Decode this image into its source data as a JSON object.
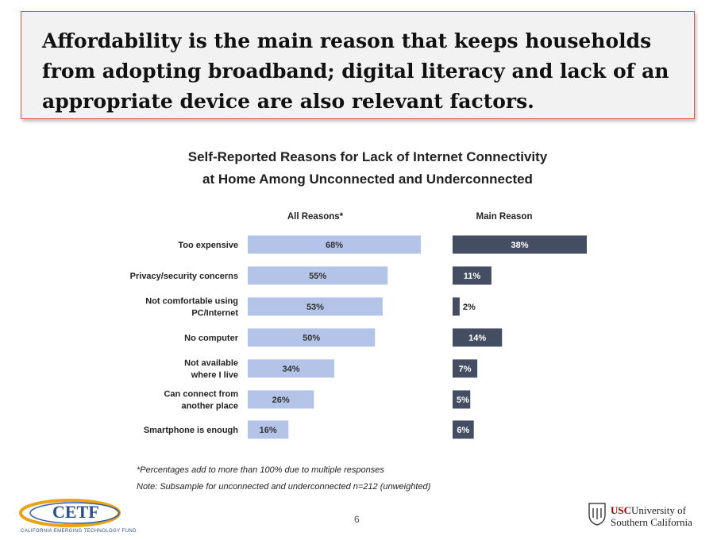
{
  "headline": {
    "lines": [
      "Affordability is the main reason that keeps households",
      "from adopting broadband; digital literacy and lack of an",
      "appropriate device are also relevant factors."
    ]
  },
  "chart_data": {
    "type": "bar",
    "orientation": "horizontal",
    "title": [
      "Self-Reported Reasons for Lack of Internet Connectivity",
      "at Home Among Unconnected and Underconnected"
    ],
    "categories": [
      "Too expensive",
      "Privacy/security concerns",
      "Not comfortable using PC/Internet",
      "No computer",
      "Not available where I live",
      "Can connect from another place",
      "Smartphone is enough"
    ],
    "category_lines": [
      [
        "Too expensive"
      ],
      [
        "Privacy/security concerns"
      ],
      [
        "Not comfortable using",
        "PC/Internet"
      ],
      [
        "No computer"
      ],
      [
        "Not available",
        "where I live"
      ],
      [
        "Can connect from",
        "another place"
      ],
      [
        "Smartphone is enough"
      ]
    ],
    "series": [
      {
        "name": "All Reasons*",
        "values": [
          68,
          55,
          53,
          50,
          34,
          26,
          16
        ],
        "labels": [
          "68%",
          "55%",
          "53%",
          "50%",
          "34%",
          "26%",
          "16%"
        ],
        "color": "#b4c3e8",
        "label_color": "#333333"
      },
      {
        "name": "Main Reason",
        "values": [
          38,
          11,
          2,
          14,
          7,
          5,
          6
        ],
        "labels": [
          "38%",
          "11%",
          "2%",
          "14%",
          "7%",
          "5%",
          "6%"
        ],
        "color": "#434e63",
        "label_color": "#ffffff"
      }
    ],
    "unit": "%"
  },
  "notes": [
    "*Percentages add to more than 100% due to multiple responses",
    "Note: Subsample for unconnected and underconnected n=212 (unweighted)"
  ],
  "page_number": "6",
  "logos": {
    "cetf": {
      "text": "CETF",
      "tagline": "CALIFORNIA EMERGING TECHNOLOGY FUND"
    },
    "usc": {
      "mark": "USC",
      "line1": "University of",
      "line2": "Southern California"
    }
  }
}
